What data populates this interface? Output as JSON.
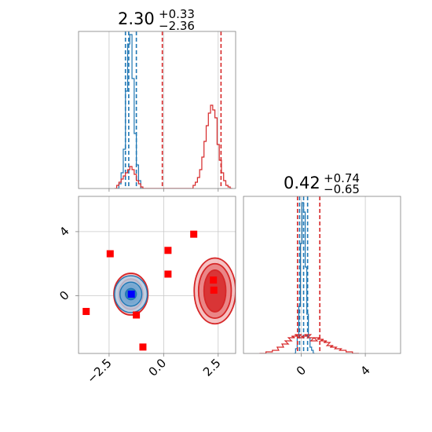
{
  "chart_data": {
    "type": "corner",
    "titles": {
      "param1": {
        "median": "2.30",
        "plus": "+0.33",
        "minus": "−2.36"
      },
      "param2": {
        "median": "0.42",
        "plus": "+0.74",
        "minus": "−0.65"
      }
    },
    "axes": {
      "param1": {
        "range": [
          -3.9,
          3.3
        ],
        "ticks": [
          -2.5,
          0.0,
          2.5
        ],
        "tick_labels": [
          "−2.5",
          "0.0",
          "2.5"
        ]
      },
      "param2": {
        "range": [
          -3.6,
          6.2
        ],
        "ticks": [
          0,
          4
        ],
        "tick_labels": [
          "0",
          "4"
        ]
      }
    },
    "grid": true,
    "colors": {
      "blue": "#1f77b4",
      "red": "#d62728",
      "frame": "#808080",
      "grid": "#c8c8c8",
      "marker": "#ff0000",
      "truth_marker": "#0000ff"
    },
    "series": [
      {
        "color": "blue",
        "hist_param1": {
          "x": [
            -2.1,
            -2.0,
            -1.9,
            -1.8,
            -1.7,
            -1.6,
            -1.5,
            -1.4,
            -1.3,
            -1.2,
            -1.1,
            -1.0
          ],
          "y": [
            0.0,
            0.03,
            0.1,
            0.25,
            0.62,
            0.92,
            0.98,
            0.7,
            0.35,
            0.15,
            0.05,
            0.0
          ]
        },
        "hist_param2": {
          "x": [
            -0.4,
            -0.3,
            -0.2,
            -0.1,
            0.0,
            0.1,
            0.2,
            0.3,
            0.4,
            0.5,
            0.6,
            0.7,
            0.8
          ],
          "y": [
            0.0,
            0.03,
            0.1,
            0.3,
            0.7,
            0.96,
            0.9,
            0.55,
            0.25,
            0.1,
            0.04,
            0.02,
            0.0
          ]
        },
        "quantiles_param1": [
          -1.75,
          -1.6,
          -1.25
        ],
        "quantiles_param2": [
          -0.1,
          0.15,
          0.4
        ],
        "contour_center": [
          -1.5,
          0.1
        ],
        "contour_radii": [
          [
            0.25,
            0.35
          ],
          [
            0.5,
            0.75
          ],
          [
            0.75,
            1.15
          ]
        ]
      },
      {
        "color": "red",
        "hist_param1": {
          "x": [
            -2.2,
            -2.1,
            -2.0,
            -1.9,
            -1.8,
            -1.7,
            -1.6,
            -1.5,
            -1.4,
            -1.3,
            -1.2,
            -1.1,
            -1.0,
            -0.9,
            1.3,
            1.4,
            1.5,
            1.6,
            1.7,
            1.8,
            1.9,
            2.0,
            2.1,
            2.2,
            2.3,
            2.4,
            2.5,
            2.6,
            2.7,
            2.8,
            2.9,
            3.0,
            3.1
          ],
          "y": [
            0.0,
            0.02,
            0.04,
            0.06,
            0.08,
            0.1,
            0.12,
            0.14,
            0.12,
            0.09,
            0.05,
            0.03,
            0.01,
            0.0,
            0.0,
            0.02,
            0.04,
            0.07,
            0.12,
            0.2,
            0.3,
            0.4,
            0.48,
            0.53,
            0.5,
            0.45,
            0.28,
            0.18,
            0.1,
            0.05,
            0.02,
            0.01,
            0.0
          ]
        },
        "hist_param2": {
          "x": [
            -2.4,
            -2.0,
            -1.6,
            -1.3,
            -1.0,
            -0.8,
            -0.6,
            -0.4,
            -0.2,
            0.0,
            0.2,
            0.4,
            0.6,
            0.8,
            1.0,
            1.2,
            1.4,
            1.6,
            1.8,
            2.0,
            2.3,
            2.6,
            3.0,
            3.4
          ],
          "y": [
            0.0,
            0.01,
            0.02,
            0.04,
            0.06,
            0.08,
            0.1,
            0.11,
            0.12,
            0.1,
            0.11,
            0.12,
            0.1,
            0.08,
            0.1,
            0.09,
            0.08,
            0.07,
            0.05,
            0.04,
            0.03,
            0.02,
            0.01,
            0.0
          ]
        },
        "quantiles_param1": [
          -0.06,
          2.63
        ],
        "quantiles_param2": [
          -0.23,
          1.16
        ],
        "contour_centers": [
          [
            2.35,
            0.3
          ],
          [
            -1.5,
            0.1
          ]
        ],
        "contour_radii_right": [
          [
            0.5,
            1.3
          ],
          [
            0.75,
            1.7
          ],
          [
            0.95,
            2.05
          ]
        ],
        "contour_radii_left": [
          [
            0.3,
            0.55
          ],
          [
            0.55,
            0.95
          ],
          [
            0.78,
            1.3
          ]
        ]
      }
    ],
    "markers": {
      "red_squares": [
        [
          -3.55,
          -0.98
        ],
        [
          -2.45,
          2.62
        ],
        [
          -1.25,
          -1.2
        ],
        [
          -0.95,
          -3.2
        ],
        [
          0.2,
          2.83
        ],
        [
          0.2,
          1.35
        ],
        [
          1.38,
          3.84
        ],
        [
          2.28,
          0.98
        ],
        [
          2.3,
          0.35
        ]
      ],
      "blue_square": [
        -1.48,
        0.1
      ]
    }
  }
}
